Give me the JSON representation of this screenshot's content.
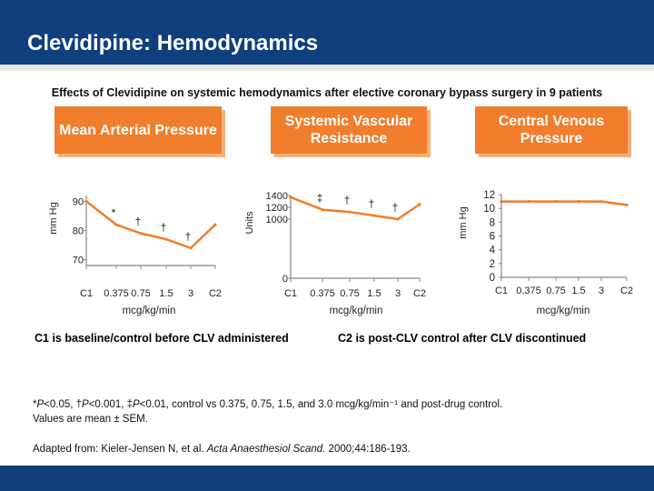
{
  "slide": {
    "title": "Clevidipine: Hemodynamics",
    "subtitle": "Effects of Clevidipine on systemic hemodynamics after elective coronary bypass surgery in 9 patients"
  },
  "panels": {
    "map": {
      "header": "Mean Arterial Pressure"
    },
    "svr": {
      "header": "Systemic Vascular Resistance"
    },
    "cvp": {
      "header": "Central Venous Pressure"
    }
  },
  "chart_data": [
    {
      "type": "line",
      "title": "Mean Arterial Pressure",
      "ylabel": "mm Hg",
      "xlabel": "mcg/kg/min",
      "ylim": [
        68,
        92
      ],
      "yticks": [
        70,
        80,
        90
      ],
      "categories": [
        "C1",
        "0.375",
        "0.75",
        "1.5",
        "3",
        "C2"
      ],
      "values": [
        90,
        82,
        79,
        77,
        74,
        82
      ],
      "annotations": [
        "",
        "*",
        "†",
        "†",
        "†",
        ""
      ],
      "color": "#f07e2c"
    },
    {
      "type": "line",
      "title": "Systemic Vascular Resistance",
      "ylabel": "Units",
      "xlabel": "mcg/kg/min",
      "ylim": [
        0,
        1400
      ],
      "yticks": [
        0,
        1000,
        1200,
        1400
      ],
      "categories": [
        "C1",
        "0.375",
        "0.75",
        "1.5",
        "3",
        "C2"
      ],
      "values": [
        1370,
        1160,
        1120,
        1060,
        1000,
        1250
      ],
      "annotations": [
        "",
        "‡",
        "†",
        "†",
        "†",
        ""
      ],
      "color": "#f07e2c"
    },
    {
      "type": "line",
      "title": "Central Venous Pressure",
      "ylabel": "mm Hg",
      "xlabel": "mcg/kg/min",
      "ylim": [
        0,
        12
      ],
      "yticks": [
        0,
        2,
        4,
        6,
        8,
        10,
        12
      ],
      "categories": [
        "C1",
        "0.375",
        "0.75",
        "1.5",
        "3",
        "C2"
      ],
      "values": [
        11,
        11,
        11,
        11,
        11,
        10.5
      ],
      "annotations": [
        "",
        "",
        "",
        "",
        "",
        ""
      ],
      "color": "#f07e2c"
    }
  ],
  "notes": {
    "c1": "C1 is baseline/control before CLV administered",
    "c2": "C2 is post-CLV control after CLV discontinued"
  },
  "footnotes": {
    "sig_p05": "P",
    "sig_p05_rest": "<0.05, †",
    "sig_p001": "P",
    "sig_p001_rest": "<0.001, ‡",
    "sig_p01": "P",
    "sig_p01_rest": "<0.01, control vs 0.375, 0.75, 1.5, and 3.0 mcg/kg/min⁻¹ and post-drug control.",
    "sig_prefix": "*",
    "sem": "Values are mean ± SEM.",
    "source_prefix": "Adapted from: Kieler-Jensen N, et al. ",
    "source_journal": "Acta Anaesthesiol Scand.",
    "source_suffix": " 2000;44:186-193."
  }
}
